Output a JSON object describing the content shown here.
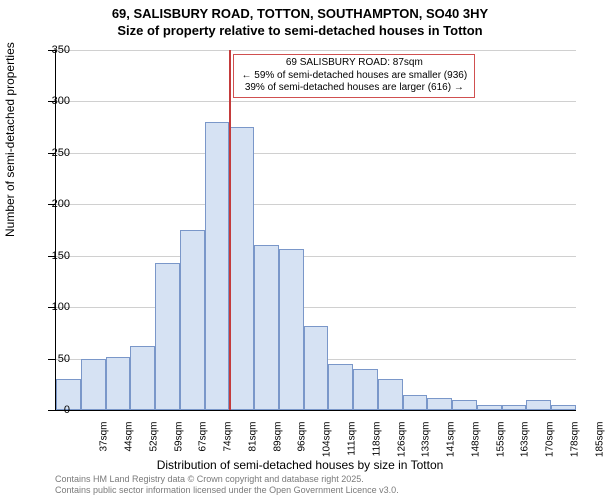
{
  "title_line1": "69, SALISBURY ROAD, TOTTON, SOUTHAMPTON, SO40 3HY",
  "title_line2": "Size of property relative to semi-detached houses in Totton",
  "ylabel": "Number of semi-detached properties",
  "xlabel": "Distribution of semi-detached houses by size in Totton",
  "chart": {
    "type": "histogram",
    "ylim": [
      0,
      350
    ],
    "ytick_step": 50,
    "yticks": [
      0,
      50,
      100,
      150,
      200,
      250,
      300,
      350
    ],
    "bar_fill": "#d6e2f3",
    "bar_border": "#7a97c9",
    "grid_color": "#d0d0d0",
    "background_color": "#ffffff",
    "axis_color": "#000000",
    "marker_color": "#c43b3b",
    "annotation_border": "#d05050",
    "bar_width_ratio": 1.0,
    "title_fontsize": 13,
    "label_fontsize": 12,
    "tick_fontsize": 11,
    "xtick_fontsize": 10,
    "bins": [
      {
        "label": "37sqm",
        "value": 30
      },
      {
        "label": "44sqm",
        "value": 50
      },
      {
        "label": "52sqm",
        "value": 52
      },
      {
        "label": "59sqm",
        "value": 62
      },
      {
        "label": "67sqm",
        "value": 143
      },
      {
        "label": "74sqm",
        "value": 175
      },
      {
        "label": "81sqm",
        "value": 280
      },
      {
        "label": "89sqm",
        "value": 275
      },
      {
        "label": "96sqm",
        "value": 160
      },
      {
        "label": "104sqm",
        "value": 157
      },
      {
        "label": "111sqm",
        "value": 82
      },
      {
        "label": "118sqm",
        "value": 45
      },
      {
        "label": "126sqm",
        "value": 40
      },
      {
        "label": "133sqm",
        "value": 30
      },
      {
        "label": "141sqm",
        "value": 15
      },
      {
        "label": "148sqm",
        "value": 12
      },
      {
        "label": "155sqm",
        "value": 10
      },
      {
        "label": "163sqm",
        "value": 5
      },
      {
        "label": "170sqm",
        "value": 5
      },
      {
        "label": "178sqm",
        "value": 10
      },
      {
        "label": "185sqm",
        "value": 5
      }
    ],
    "marker_bin_index": 7,
    "marker_position_in_bin": 0.0
  },
  "annotation": {
    "line1": "69 SALISBURY ROAD: 87sqm",
    "line2": "← 59% of semi-detached houses are smaller (936)",
    "line3": "39% of semi-detached houses are larger (616) →"
  },
  "attribution": {
    "line1": "Contains HM Land Registry data © Crown copyright and database right 2025.",
    "line2": "Contains public sector information licensed under the Open Government Licence v3.0."
  }
}
